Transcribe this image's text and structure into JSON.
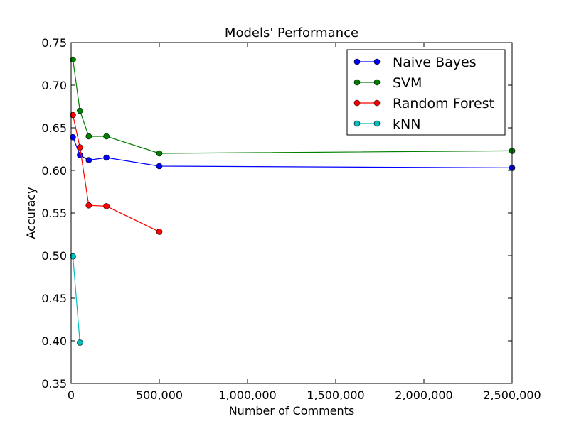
{
  "chart_data": {
    "type": "line",
    "title": "Models' Performance",
    "xlabel": "Number of Comments",
    "ylabel": "Accuracy",
    "xlim": [
      0,
      2500000
    ],
    "ylim": [
      0.35,
      0.75
    ],
    "x_ticks": [
      0,
      500000,
      1000000,
      1500000,
      2000000,
      2500000
    ],
    "x_tick_labels": [
      "0",
      "500,000",
      "1,000,000",
      "1,500,000",
      "2,000,000",
      "2,500,000"
    ],
    "y_ticks": [
      0.35,
      0.4,
      0.45,
      0.5,
      0.55,
      0.6,
      0.65,
      0.7,
      0.75
    ],
    "y_tick_labels": [
      "0.35",
      "0.40",
      "0.45",
      "0.50",
      "0.55",
      "0.60",
      "0.65",
      "0.70",
      "0.75"
    ],
    "grid": false,
    "legend_position": "top-right",
    "series": [
      {
        "name": "Naive Bayes",
        "color": "#0000ff",
        "x": [
          10000,
          50000,
          100000,
          200000,
          500000,
          2500000
        ],
        "y": [
          0.639,
          0.618,
          0.612,
          0.615,
          0.605,
          0.603
        ]
      },
      {
        "name": "SVM",
        "color": "#008000",
        "x": [
          10000,
          50000,
          100000,
          200000,
          500000,
          2500000
        ],
        "y": [
          0.73,
          0.67,
          0.64,
          0.64,
          0.62,
          0.623
        ]
      },
      {
        "name": "Random Forest",
        "color": "#ff0000",
        "x": [
          10000,
          50000,
          100000,
          200000,
          500000
        ],
        "y": [
          0.665,
          0.627,
          0.559,
          0.558,
          0.528
        ]
      },
      {
        "name": "kNN",
        "color": "#00bfbf",
        "x": [
          10000,
          50000
        ],
        "y": [
          0.499,
          0.398
        ]
      }
    ]
  }
}
